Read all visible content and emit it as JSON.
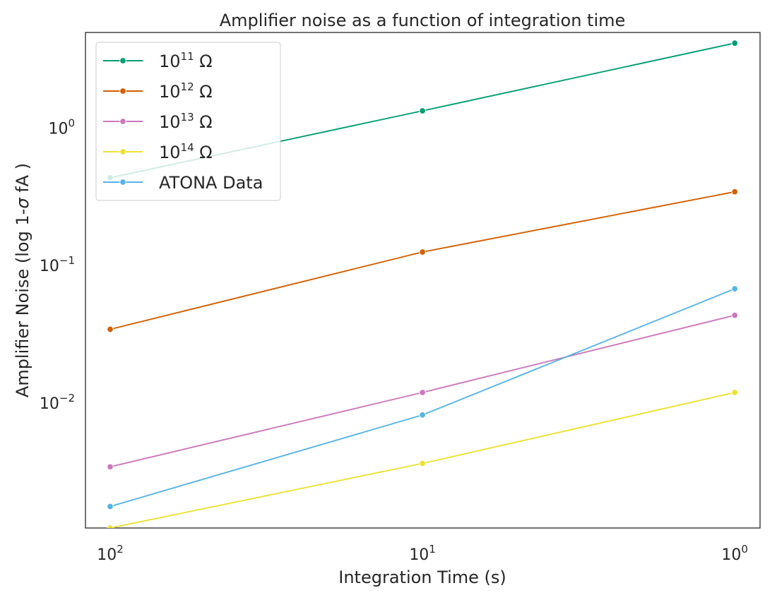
{
  "chart_data": {
    "type": "line",
    "title": "Amplifier noise as a function of integration time",
    "xlabel": "Integration Time (s)",
    "ylabel_prefix": "Amplifier Noise (log 1-",
    "ylabel_sigma": "σ",
    "ylabel_suffix": " fA )",
    "x_scale": "log",
    "y_scale": "log",
    "x_inverted": true,
    "x_ticks": [
      {
        "base": "10",
        "exp": "2",
        "value": 100
      },
      {
        "base": "10",
        "exp": "1",
        "value": 10
      },
      {
        "base": "10",
        "exp": "0",
        "value": 1
      }
    ],
    "y_ticks": [
      {
        "base": "10",
        "exp": "0",
        "value": 1
      },
      {
        "base": "10",
        "exp": "−1",
        "value": 0.1
      },
      {
        "base": "10",
        "exp": "−2",
        "value": 0.01
      }
    ],
    "xlim": [
      120,
      0.83
    ],
    "ylim": [
      0.00122,
      4.9
    ],
    "x": [
      100,
      10,
      1
    ],
    "grid": false,
    "legend_position": "top-left",
    "series": [
      {
        "name_base": "10",
        "name_exp": "11",
        "name_unit": " Ω",
        "color": "#029e73",
        "values": [
          0.43,
          1.32,
          4.1
        ]
      },
      {
        "name_base": "10",
        "name_exp": "12",
        "name_unit": " Ω",
        "color": "#d55e00",
        "values": [
          0.034,
          0.124,
          0.34
        ]
      },
      {
        "name_base": "10",
        "name_exp": "13",
        "name_unit": " Ω",
        "color": "#cc78bc",
        "values": [
          0.0034,
          0.0118,
          0.043
        ]
      },
      {
        "name_base": "10",
        "name_exp": "14",
        "name_unit": " Ω",
        "color": "#ece133",
        "values": [
          0.00122,
          0.0036,
          0.0118
        ]
      },
      {
        "name": "ATONA Data",
        "color": "#56b4e9",
        "values": [
          0.00175,
          0.0081,
          0.067
        ]
      }
    ]
  }
}
